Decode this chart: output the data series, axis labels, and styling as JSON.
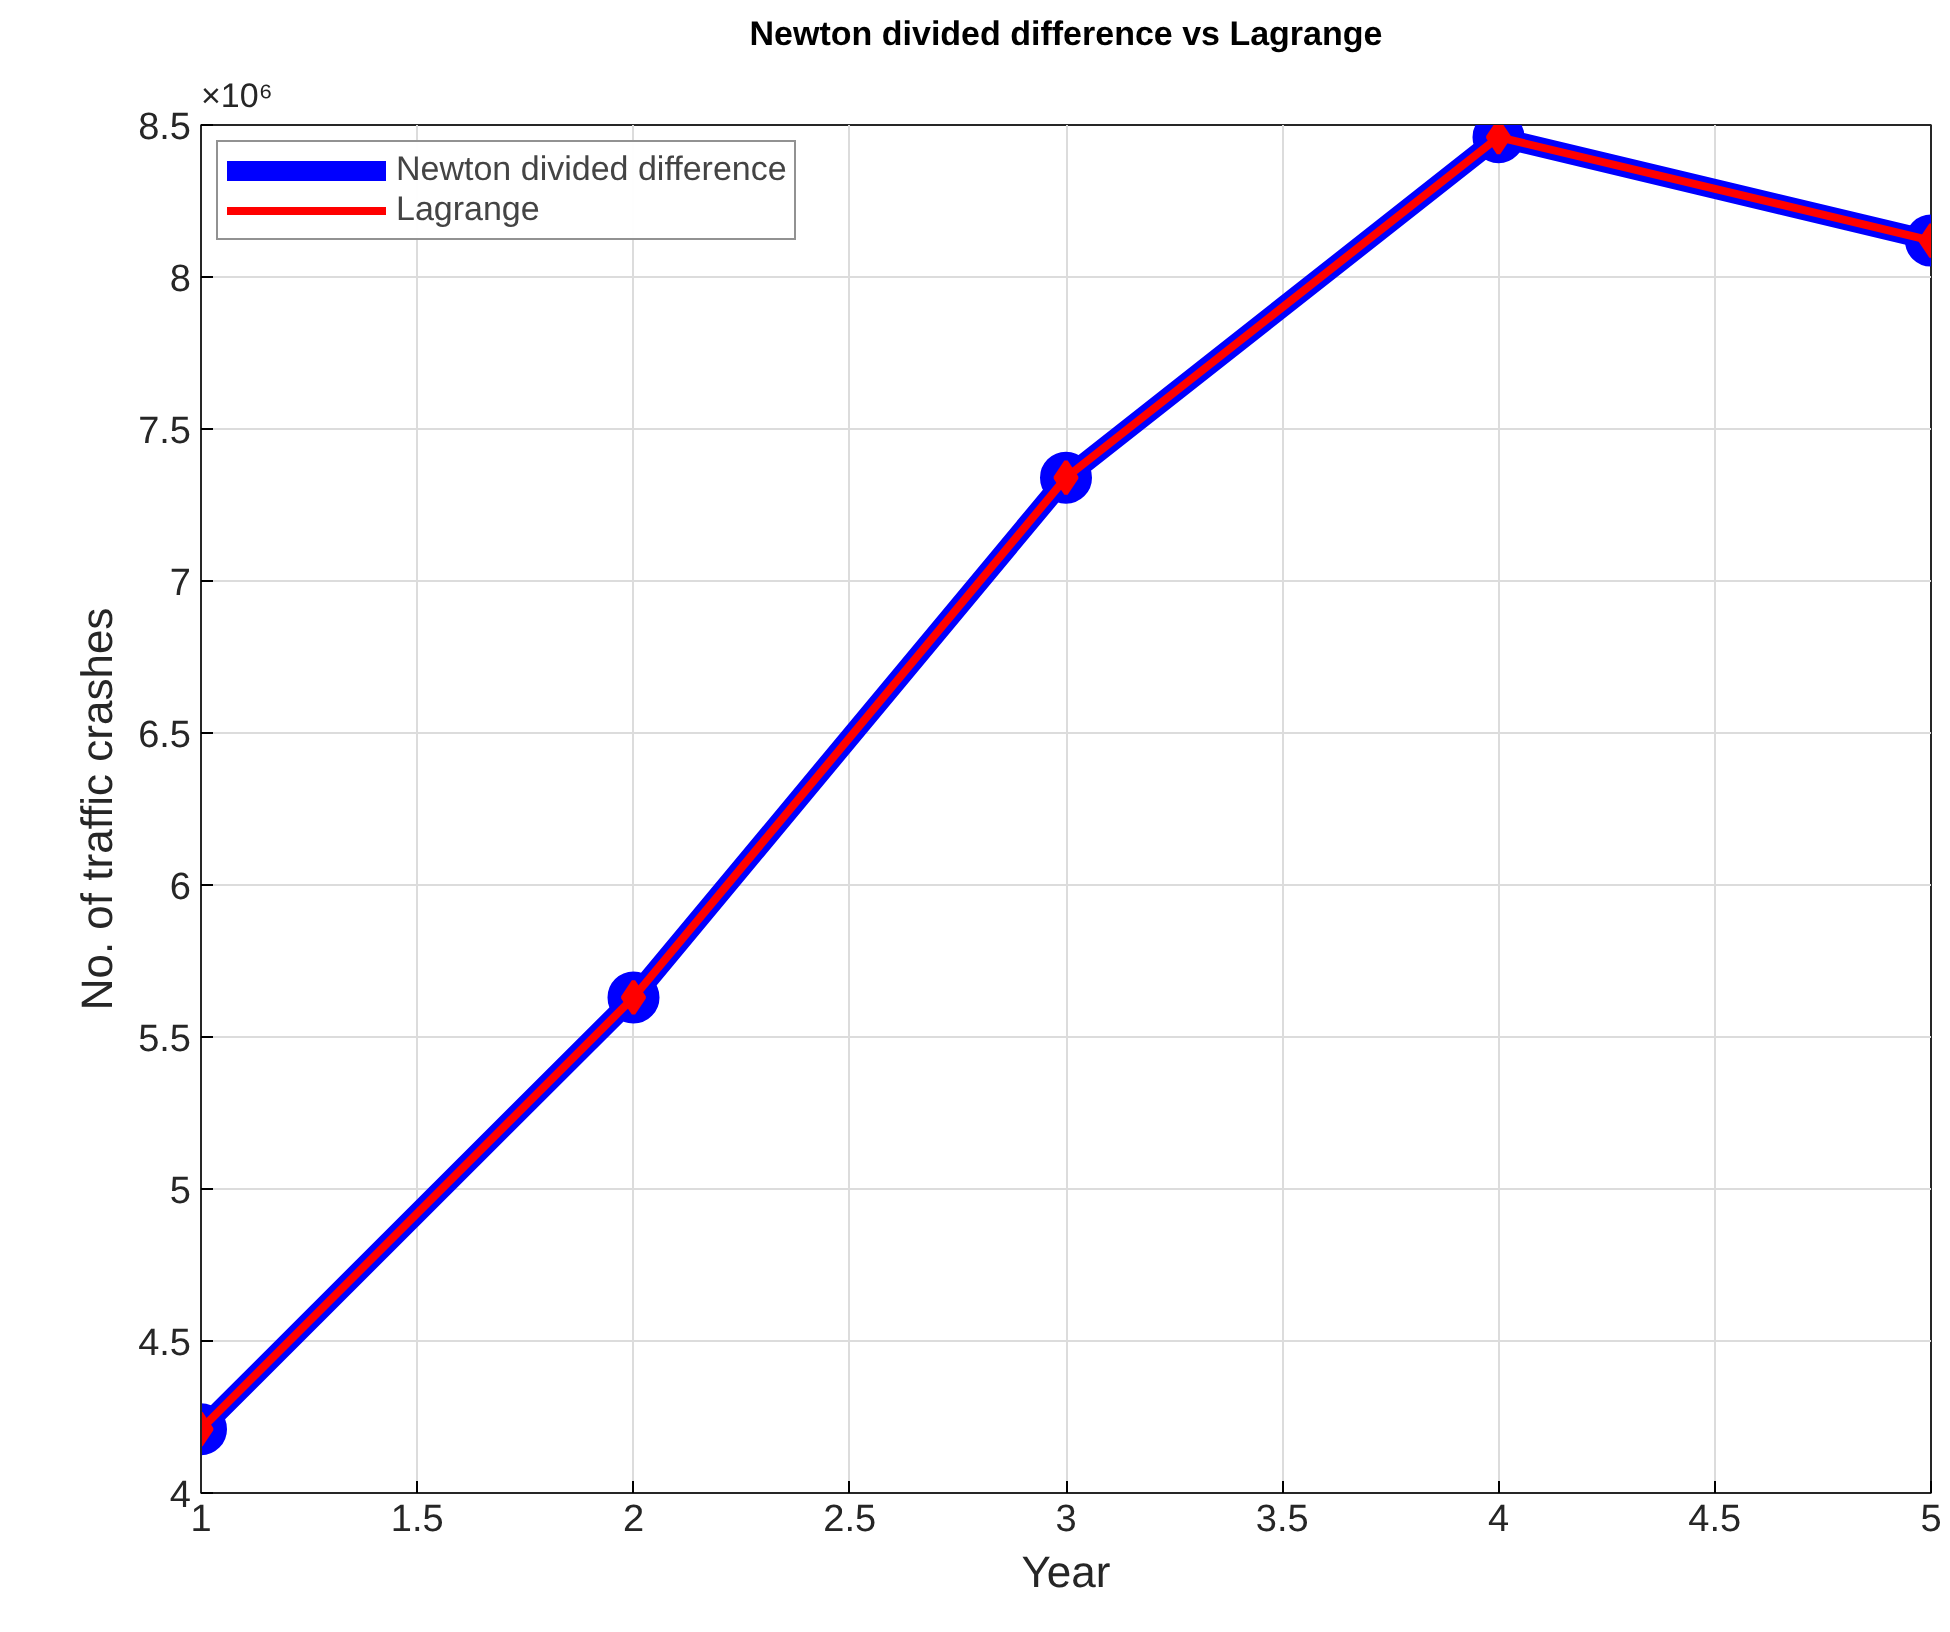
{
  "chart_data": {
    "type": "line",
    "title": "Newton divided difference vs Lagrange",
    "xlabel": "Year",
    "ylabel": "No. of traffic crashes",
    "x": [
      1,
      2,
      3,
      4,
      5
    ],
    "series": [
      {
        "name": "Newton divided difference",
        "color": "#0000ff",
        "marker": "circle",
        "values": [
          4.21,
          5.63,
          7.34,
          8.46,
          8.12
        ]
      },
      {
        "name": "Lagrange",
        "color": "#ff0000",
        "marker": "diamond",
        "values": [
          4.21,
          5.63,
          7.34,
          8.46,
          8.12
        ]
      }
    ],
    "xlim": [
      1,
      5
    ],
    "xticks": [
      1,
      1.5,
      2,
      2.5,
      3,
      3.5,
      4,
      4.5,
      5
    ],
    "ylim": [
      4,
      8.5
    ],
    "yticks": [
      4,
      4.5,
      5,
      5.5,
      6,
      6.5,
      7,
      7.5,
      8,
      8.5
    ],
    "annotations": [
      "×10⁶"
    ],
    "grid": true,
    "legend": "top left"
  }
}
